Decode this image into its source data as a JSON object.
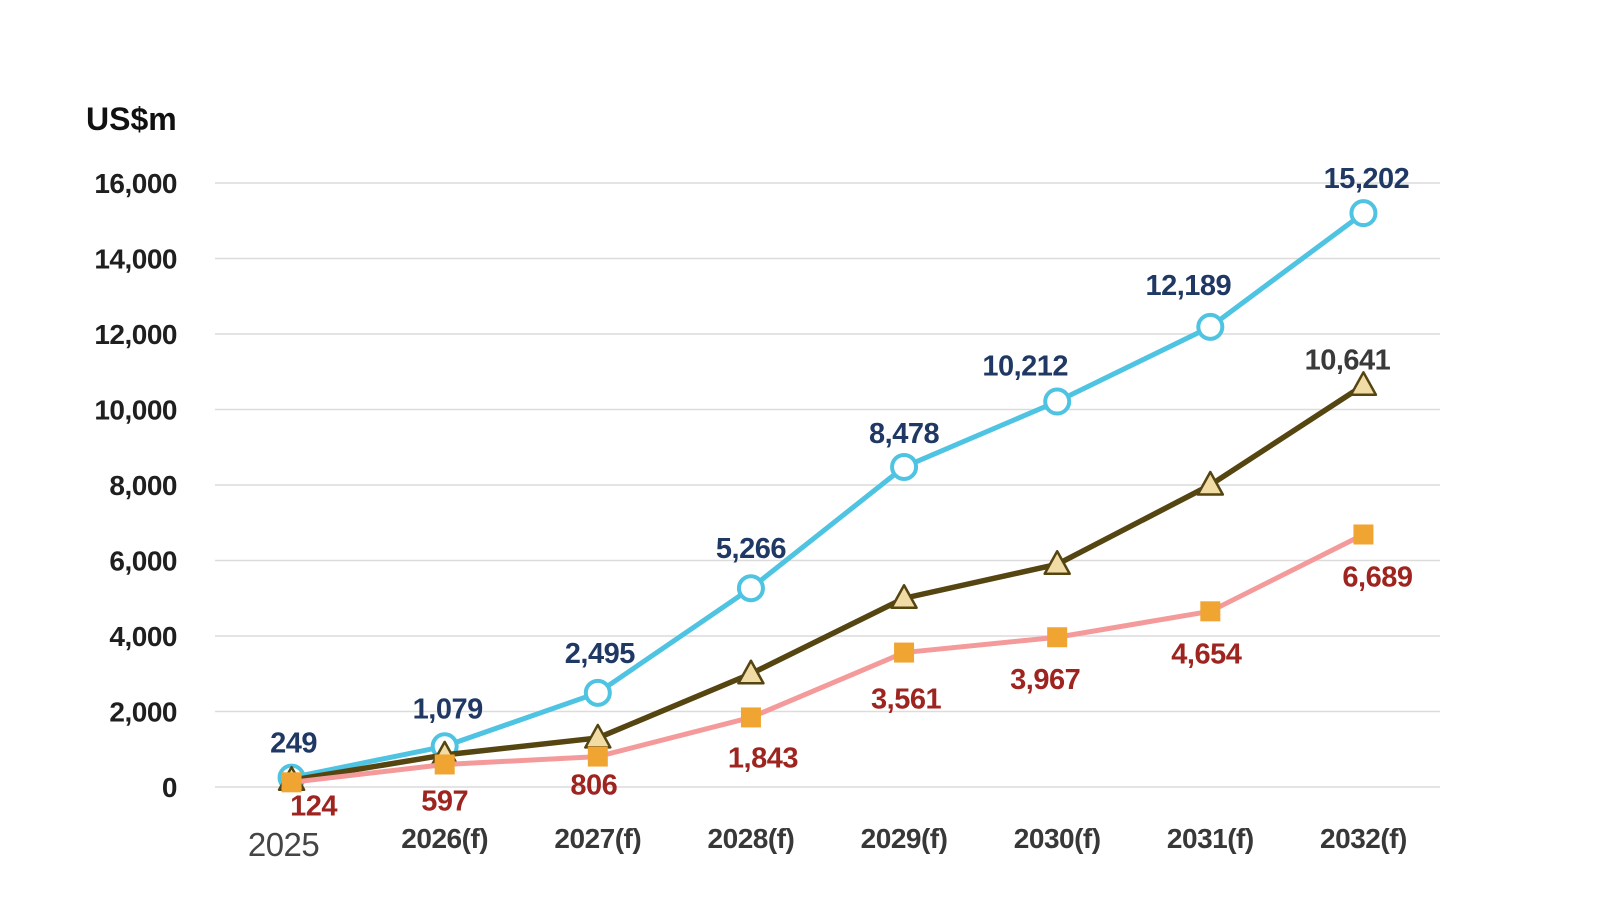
{
  "chart_data": {
    "type": "line",
    "title": "",
    "ylabel": "US$m",
    "xlabel": "",
    "categories": [
      "2025",
      "2026(f)",
      "2027(f)",
      "2028(f)",
      "2029(f)",
      "2030(f)",
      "2031(f)",
      "2032(f)"
    ],
    "ylim": [
      0,
      16000
    ],
    "y_tick_values": [
      0,
      2000,
      4000,
      6000,
      8000,
      10000,
      12000,
      14000,
      16000
    ],
    "y_tick_labels": [
      "0",
      "2,000",
      "4,000",
      "6,000",
      "8,000",
      "10,000",
      "12,000",
      "14,000",
      "16,000"
    ],
    "grid": true,
    "legend": "none",
    "series": [
      {
        "name": "cyan-circle-series",
        "marker": "circle",
        "line_color": "#4ec3e2",
        "marker_fill": "#ffffff",
        "marker_stroke": "#4ec3e2",
        "label_color": "#1f3864",
        "values": [
          249,
          1079,
          2495,
          5266,
          8478,
          10212,
          12189,
          15202
        ],
        "point_labels": [
          "249",
          "1,079",
          "2,495",
          "5,266",
          "8,478",
          "10,212",
          "12,189",
          "15,202"
        ],
        "label_position": "above"
      },
      {
        "name": "olive-triangle-series",
        "marker": "triangle",
        "line_color": "#554511",
        "marker_fill": "#f2dca6",
        "marker_stroke": "#554511",
        "label_color": "#3a3a3a",
        "values": [
          180,
          850,
          1300,
          3000,
          5000,
          5900,
          8000,
          10641
        ],
        "point_labels": [
          "",
          "",
          "",
          "",
          "",
          "",
          "",
          "10,641"
        ],
        "label_position": "above"
      },
      {
        "name": "pink-square-series",
        "marker": "square",
        "line_color": "#f49a9a",
        "marker_fill": "#f0a432",
        "marker_stroke": "#f0a432",
        "label_color": "#9e2420",
        "values": [
          124,
          597,
          806,
          1843,
          3561,
          3967,
          4654,
          6689
        ],
        "point_labels": [
          "124",
          "597",
          "806",
          "1,843",
          "3,561",
          "3,967",
          "4,654",
          "6,689"
        ],
        "label_position": "below"
      }
    ],
    "colors": {
      "background": "#ffffff",
      "grid": "#dcdcdc",
      "y_tick_text": "#1f1f1f",
      "x_tick_text": "#383838",
      "x_first_tick_text": "#454545",
      "axis_title_text": "#111111"
    }
  }
}
